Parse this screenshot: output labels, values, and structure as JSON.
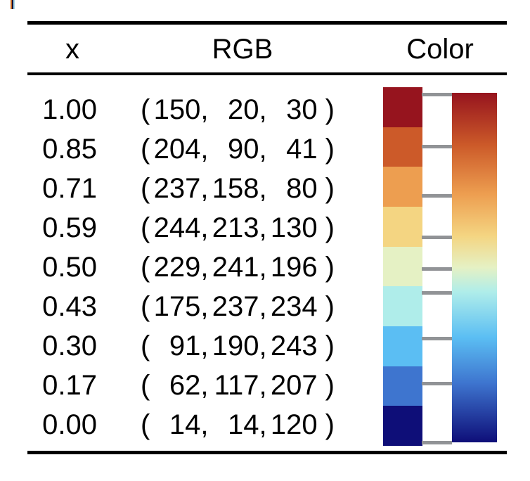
{
  "figure": {
    "background": "#ffffff",
    "rule_color": "#000000",
    "text_color": "#000000",
    "tick_color": "#919396",
    "artifact_stripes": [
      "#c2641e",
      "#101038",
      "#a5d8e8"
    ]
  },
  "table": {
    "headers": {
      "x": "x",
      "rgb": "RGB",
      "color": "Color"
    },
    "punctuation": {
      "open": "(",
      "comma": ",",
      "close": ")"
    },
    "rows": [
      {
        "x_label": "1.00",
        "x": 1.0,
        "r": 150,
        "g": 20,
        "b": 30
      },
      {
        "x_label": "0.85",
        "x": 0.85,
        "r": 204,
        "g": 90,
        "b": 41
      },
      {
        "x_label": "0.71",
        "x": 0.71,
        "r": 237,
        "g": 158,
        "b": 80
      },
      {
        "x_label": "0.59",
        "x": 0.59,
        "r": 244,
        "g": 213,
        "b": 130
      },
      {
        "x_label": "0.50",
        "x": 0.5,
        "r": 229,
        "g": 241,
        "b": 196
      },
      {
        "x_label": "0.43",
        "x": 0.43,
        "r": 175,
        "g": 237,
        "b": 234
      },
      {
        "x_label": "0.30",
        "x": 0.3,
        "r": 91,
        "g": 190,
        "b": 243
      },
      {
        "x_label": "0.17",
        "x": 0.17,
        "r": 62,
        "g": 117,
        "b": 207
      },
      {
        "x_label": "0.00",
        "x": 0.0,
        "r": 14,
        "g": 14,
        "b": 120
      }
    ]
  },
  "chart_data": {
    "type": "table",
    "columns": [
      "x",
      "RGB",
      "Color"
    ],
    "rows": [
      {
        "x": 1.0,
        "rgb": [
          150,
          20,
          30
        ]
      },
      {
        "x": 0.85,
        "rgb": [
          204,
          90,
          41
        ]
      },
      {
        "x": 0.71,
        "rgb": [
          237,
          158,
          80
        ]
      },
      {
        "x": 0.59,
        "rgb": [
          244,
          213,
          130
        ]
      },
      {
        "x": 0.5,
        "rgb": [
          229,
          241,
          196
        ]
      },
      {
        "x": 0.43,
        "rgb": [
          175,
          237,
          234
        ]
      },
      {
        "x": 0.3,
        "rgb": [
          91,
          190,
          243
        ]
      },
      {
        "x": 0.17,
        "rgb": [
          62,
          117,
          207
        ]
      },
      {
        "x": 0.0,
        "rgb": [
          14,
          14,
          120
        ]
      }
    ],
    "colorbar": {
      "orientation": "vertical",
      "top_x": 1.0,
      "bottom_x": 0.0,
      "left_style": "discrete-swatches",
      "right_style": "continuous-gradient",
      "tick_positions": [
        1.0,
        0.85,
        0.71,
        0.59,
        0.5,
        0.43,
        0.3,
        0.17,
        0.0
      ],
      "tick_color": "#919396"
    }
  }
}
